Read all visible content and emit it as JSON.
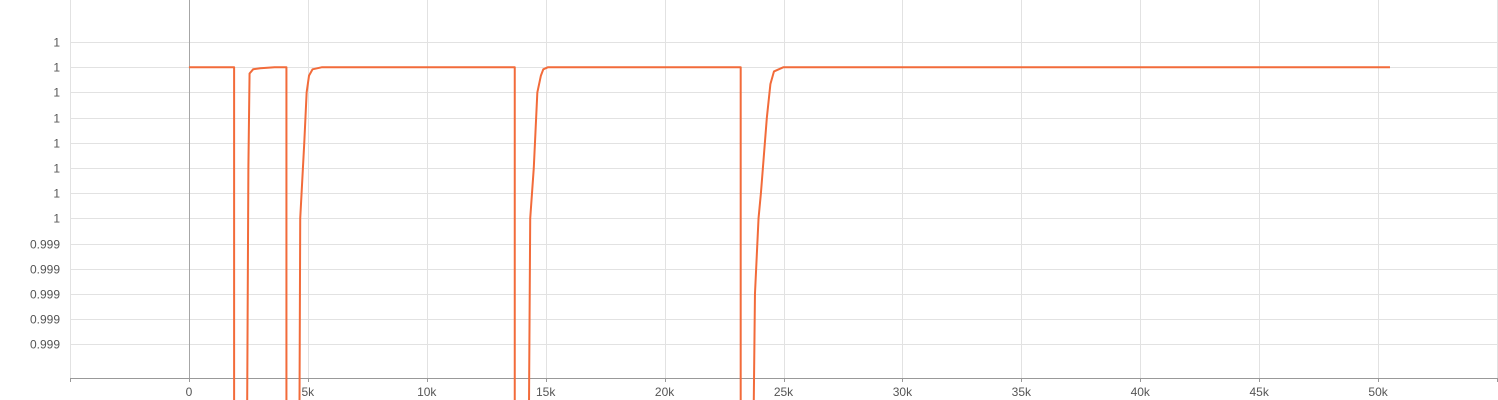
{
  "chart_data": {
    "type": "line",
    "title": "",
    "xlabel": "",
    "ylabel": "",
    "xlim": [
      -5000,
      55000
    ],
    "x_ticks": [
      0,
      5000,
      10000,
      15000,
      20000,
      25000,
      30000,
      35000,
      40000,
      45000,
      50000
    ],
    "x_tick_labels": [
      "0",
      "5k",
      "10k",
      "15k",
      "20k",
      "25k",
      "30k",
      "35k",
      "40k",
      "45k",
      "50k"
    ],
    "ylim": [
      0.99872,
      1.00052
    ],
    "y_ticks": [
      0.99888,
      0.999,
      0.99912,
      0.99924,
      0.99936,
      0.99948,
      0.9996,
      0.99972,
      0.99984,
      0.99996,
      1.00008,
      1.0002,
      1.00032
    ],
    "y_tick_labels": [
      "0.999",
      "0.999",
      "0.999",
      "0.999",
      "0.999",
      "1",
      "1",
      "1",
      "1",
      "1",
      "1",
      "1",
      "1"
    ],
    "grid": true,
    "legend": "none",
    "colors": {
      "series": "#f26b3a",
      "zero_line": "#a6a6a6"
    },
    "series": [
      {
        "color": "#f26b3a",
        "points": [
          [
            0,
            1.0002
          ],
          [
            1900,
            1.0002
          ],
          [
            1900,
            0.9986
          ],
          [
            2450,
            0.9986
          ],
          [
            2500,
            0.99972
          ],
          [
            2550,
            1.00017
          ],
          [
            2700,
            1.00019
          ],
          [
            3000,
            1.000195
          ],
          [
            3600,
            1.0002
          ],
          [
            4100,
            1.0002
          ],
          [
            4100,
            0.9986
          ],
          [
            4650,
            0.9986
          ],
          [
            4680,
            0.99948
          ],
          [
            4850,
            0.99984
          ],
          [
            4950,
            1.00008
          ],
          [
            5050,
            1.00016
          ],
          [
            5200,
            1.00019
          ],
          [
            5600,
            1.0002
          ],
          [
            13700,
            1.0002
          ],
          [
            13700,
            0.9986
          ],
          [
            14300,
            0.9986
          ],
          [
            14350,
            0.99948
          ],
          [
            14500,
            0.99972
          ],
          [
            14650,
            1.00008
          ],
          [
            14800,
            1.00016
          ],
          [
            14900,
            1.00019
          ],
          [
            15100,
            1.0002
          ],
          [
            23200,
            1.0002
          ],
          [
            23200,
            0.9986
          ],
          [
            23750,
            0.9986
          ],
          [
            23800,
            0.99912
          ],
          [
            23950,
            0.99948
          ],
          [
            24050,
            0.9996
          ],
          [
            24300,
            0.99996
          ],
          [
            24450,
            1.00012
          ],
          [
            24600,
            1.00018
          ],
          [
            25000,
            1.0002
          ],
          [
            50500,
            1.0002
          ]
        ]
      }
    ]
  }
}
